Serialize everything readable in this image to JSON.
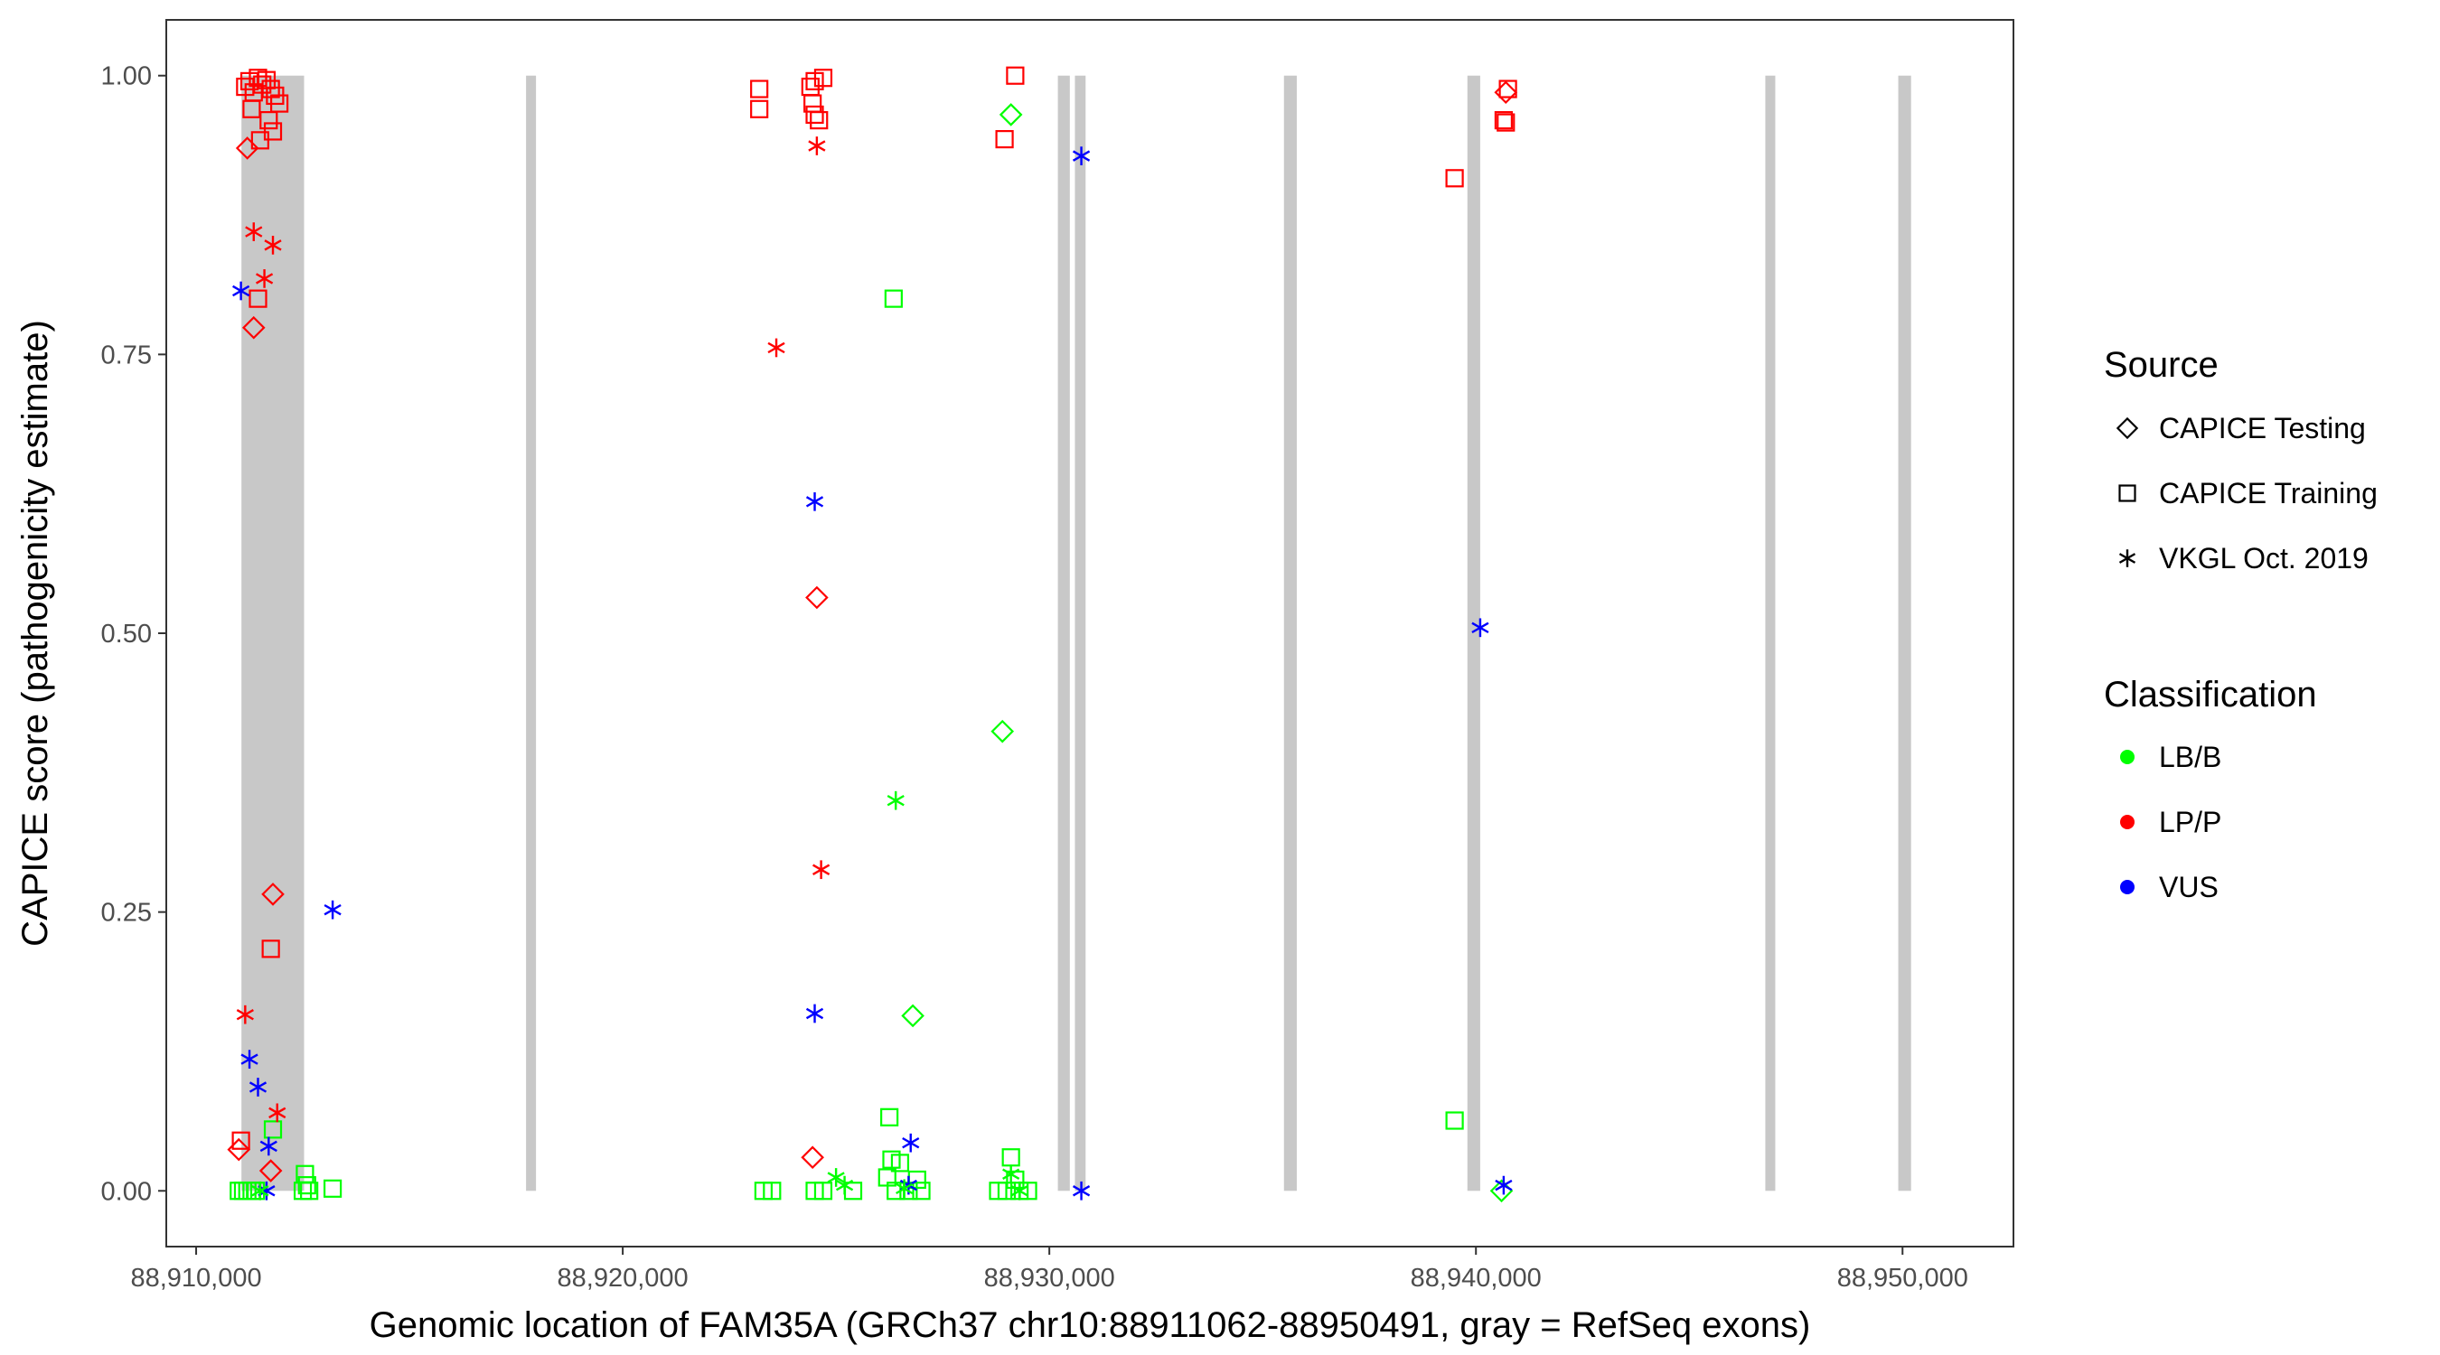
{
  "chart_data": {
    "type": "scatter",
    "xlabel": "Genomic location of FAM35A (GRCh37 chr10:88911062-88950491, gray = RefSeq exons)",
    "ylabel": "CAPICE score (pathogenicity estimate)",
    "xlim": [
      88909300,
      88952600
    ],
    "ylim": [
      -0.05,
      1.05
    ],
    "x_ticks": [
      88910000,
      88920000,
      88930000,
      88940000,
      88950000
    ],
    "x_tick_labels": [
      "88,910,000",
      "88,920,000",
      "88,930,000",
      "88,940,000",
      "88,950,000"
    ],
    "y_ticks": [
      0,
      0.25,
      0.5,
      0.75,
      1
    ],
    "y_tick_labels": [
      "0.00",
      "0.25",
      "0.50",
      "0.75",
      "1.00"
    ],
    "grid": false,
    "exons": [
      [
        88911062,
        88912530
      ],
      [
        88917750,
        88917950
      ],
      [
        88930200,
        88930480
      ],
      [
        88930600,
        88930850
      ],
      [
        88935500,
        88935800
      ],
      [
        88939800,
        88940100
      ],
      [
        88946800,
        88947000
      ],
      [
        88949900,
        88950200
      ]
    ],
    "legend_placement": "right",
    "legend": {
      "source_title": "Source",
      "source_entries": [
        {
          "label": "CAPICE Testing",
          "shape": "diamond"
        },
        {
          "label": "CAPICE Training",
          "shape": "square"
        },
        {
          "label": "VKGL Oct. 2019",
          "shape": "asterisk"
        }
      ],
      "class_title": "Classification",
      "class_entries": [
        {
          "label": "LB/B",
          "color": "#00ff00"
        },
        {
          "label": "LP/P",
          "color": "#ff0000"
        },
        {
          "label": "VUS",
          "color": "#0000ff"
        }
      ]
    },
    "colors": {
      "LB/B": "#00ff00",
      "LP/P": "#ff0000",
      "VUS": "#0000ff",
      "exon": "#c8c8c8"
    },
    "series": [
      {
        "source": "CAPICE Testing",
        "class": "LP/P",
        "points": [
          [
            88911200,
            0.935
          ],
          [
            88911350,
            0.774
          ],
          [
            88911800,
            0.266
          ],
          [
            88911000,
            0.037
          ],
          [
            88911750,
            0.018
          ],
          [
            88924550,
            0.532
          ],
          [
            88924450,
            0.03
          ],
          [
            88940700,
            0.985
          ]
        ]
      },
      {
        "source": "CAPICE Testing",
        "class": "LB/B",
        "points": [
          [
            88929100,
            0.965
          ],
          [
            88928900,
            0.412
          ],
          [
            88926800,
            0.157
          ],
          [
            88940600,
            0.0
          ]
        ]
      },
      {
        "source": "CAPICE Training",
        "class": "LP/P",
        "points": [
          [
            88911150,
            0.99
          ],
          [
            88911250,
            0.995
          ],
          [
            88911350,
            0.985
          ],
          [
            88911450,
            0.998
          ],
          [
            88911550,
            0.992
          ],
          [
            88911650,
            0.996
          ],
          [
            88911750,
            0.988
          ],
          [
            88911850,
            0.982
          ],
          [
            88911950,
            0.975
          ],
          [
            88911300,
            0.97
          ],
          [
            88911700,
            0.96
          ],
          [
            88911800,
            0.95
          ],
          [
            88911500,
            0.942
          ],
          [
            88911450,
            0.8
          ],
          [
            88911750,
            0.217
          ],
          [
            88911050,
            0.045
          ],
          [
            88923200,
            0.988
          ],
          [
            88923200,
            0.97
          ],
          [
            88924400,
            0.99
          ],
          [
            88924500,
            0.995
          ],
          [
            88924700,
            0.998
          ],
          [
            88924450,
            0.975
          ],
          [
            88924500,
            0.965
          ],
          [
            88924600,
            0.96
          ],
          [
            88929200,
            1.0
          ],
          [
            88928950,
            0.943
          ],
          [
            88940750,
            0.988
          ],
          [
            88940650,
            0.96
          ],
          [
            88940700,
            0.958
          ],
          [
            88939500,
            0.908
          ]
        ]
      },
      {
        "source": "CAPICE Training",
        "class": "LB/B",
        "points": [
          [
            88911000,
            0.0
          ],
          [
            88911100,
            0.0
          ],
          [
            88911200,
            0.0
          ],
          [
            88911300,
            0.0
          ],
          [
            88911400,
            0.0
          ],
          [
            88911800,
            0.055
          ],
          [
            88912550,
            0.015
          ],
          [
            88912600,
            0.005
          ],
          [
            88912650,
            0.0
          ],
          [
            88912500,
            0.0
          ],
          [
            88913200,
            0.002
          ],
          [
            88923300,
            0.0
          ],
          [
            88923500,
            0.0
          ],
          [
            88924500,
            0.0
          ],
          [
            88924700,
            0.0
          ],
          [
            88926350,
            0.8
          ],
          [
            88926250,
            0.066
          ],
          [
            88926300,
            0.028
          ],
          [
            88926500,
            0.025
          ],
          [
            88926200,
            0.012
          ],
          [
            88926400,
            0.0
          ],
          [
            88926700,
            0.0
          ],
          [
            88926900,
            0.01
          ],
          [
            88927000,
            0.0
          ],
          [
            88925400,
            0.0
          ],
          [
            88928800,
            0.0
          ],
          [
            88929000,
            0.0
          ],
          [
            88929100,
            0.03
          ],
          [
            88929200,
            0.01
          ],
          [
            88929300,
            0.0
          ],
          [
            88929500,
            0.0
          ],
          [
            88939500,
            0.063
          ]
        ]
      },
      {
        "source": "VKGL Oct. 2019",
        "class": "VUS",
        "points": [
          [
            88911050,
            0.807
          ],
          [
            88911250,
            0.118
          ],
          [
            88911450,
            0.093
          ],
          [
            88911700,
            0.04
          ],
          [
            88911650,
            0.0
          ],
          [
            88913200,
            0.252
          ],
          [
            88924500,
            0.618
          ],
          [
            88924500,
            0.159
          ],
          [
            88926750,
            0.043
          ],
          [
            88926700,
            0.005
          ],
          [
            88930750,
            0.928
          ],
          [
            88930750,
            0.0
          ],
          [
            88940100,
            0.505
          ],
          [
            88940650,
            0.005
          ]
        ]
      },
      {
        "source": "VKGL Oct. 2019",
        "class": "LP/P",
        "points": [
          [
            88911350,
            0.86
          ],
          [
            88911800,
            0.848
          ],
          [
            88911600,
            0.818
          ],
          [
            88911150,
            0.158
          ],
          [
            88911900,
            0.07
          ],
          [
            88923600,
            0.756
          ],
          [
            88924550,
            0.937
          ],
          [
            88924650,
            0.288
          ]
        ]
      },
      {
        "source": "VKGL Oct. 2019",
        "class": "LB/B",
        "points": [
          [
            88926400,
            0.35
          ],
          [
            88925000,
            0.012
          ],
          [
            88925200,
            0.005
          ],
          [
            88929100,
            0.015
          ],
          [
            88929300,
            0.0
          ],
          [
            88926600,
            0.002
          ],
          [
            88911500,
            0.0
          ]
        ]
      }
    ]
  }
}
